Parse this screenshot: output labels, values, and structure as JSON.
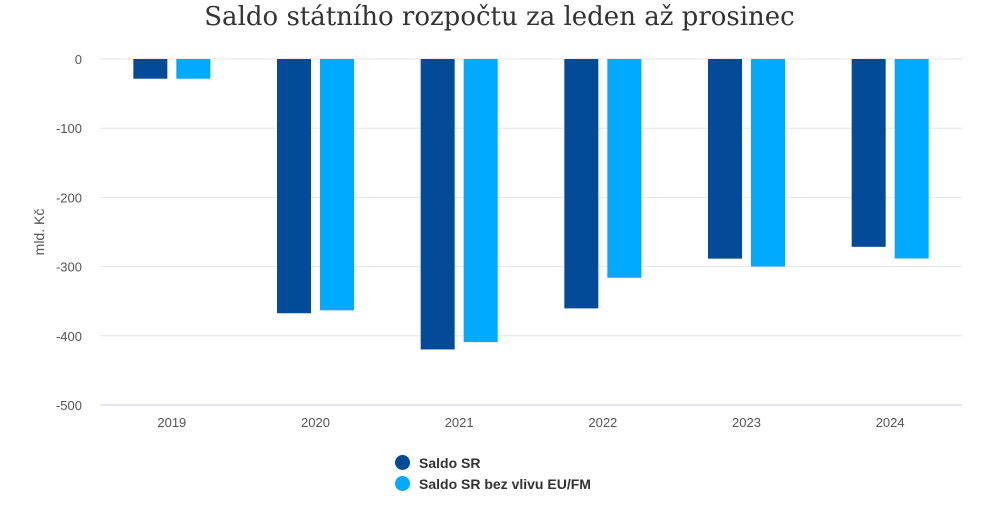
{
  "chart_data": {
    "type": "bar",
    "title": "Saldo státního rozpočtu za leden až prosinec",
    "ylabel": "mld. Kč",
    "xlabel": "",
    "categories": [
      "2019",
      "2020",
      "2021",
      "2022",
      "2023",
      "2024"
    ],
    "ylim": [
      -500,
      0
    ],
    "yticks": [
      "0",
      "-100",
      "-200",
      "-300",
      "-400",
      "-500"
    ],
    "ytick_values": [
      0,
      -100,
      -200,
      -300,
      -400,
      -500
    ],
    "grid": true,
    "legend_position": "bottom",
    "series": [
      {
        "name": "Saldo SR",
        "color": "#034a99",
        "values": [
          -28.5,
          -367.4,
          -419.7,
          -360.4,
          -288.5,
          -271.4
        ]
      },
      {
        "name": "Saldo SR bez vlivu EU/FM",
        "color": "#00aaff",
        "values": [
          -28.5,
          -363.2,
          -409.1,
          -316.1,
          -299.9,
          -288.3
        ]
      }
    ]
  }
}
